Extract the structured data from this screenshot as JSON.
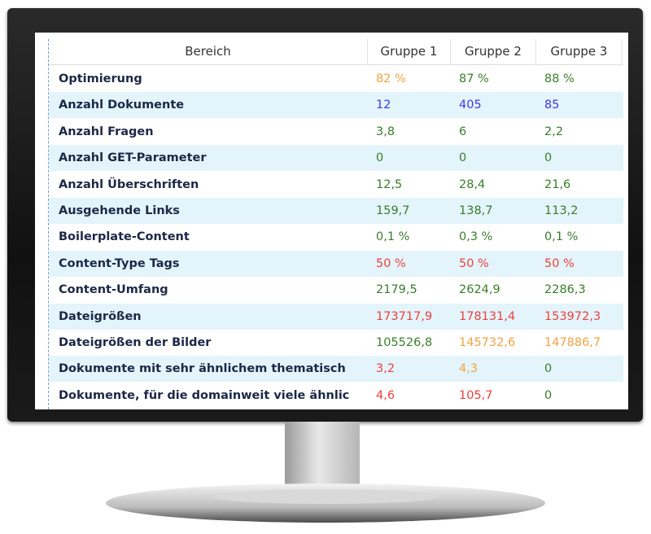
{
  "table": {
    "header": [
      "Bereich",
      "Gruppe 1",
      "Gruppe 2",
      "Gruppe 3"
    ],
    "rows": [
      {
        "label": "Optimierung",
        "cells": [
          {
            "text": "82 %",
            "color": "#f3a244"
          },
          {
            "text": "87 %",
            "color": "#3b7d2c"
          },
          {
            "text": "88 %",
            "color": "#3b7d2c"
          }
        ]
      },
      {
        "label": "Anzahl Dokumente",
        "cells": [
          {
            "text": "12",
            "color": "#3a3aee"
          },
          {
            "text": "405",
            "color": "#3a3aee"
          },
          {
            "text": "85",
            "color": "#3a3aee"
          }
        ]
      },
      {
        "label": "Anzahl Fragen",
        "cells": [
          {
            "text": "3,8",
            "color": "#3b7d2c"
          },
          {
            "text": "6",
            "color": "#3b7d2c"
          },
          {
            "text": "2,2",
            "color": "#3b7d2c"
          }
        ]
      },
      {
        "label": "Anzahl GET-Parameter",
        "cells": [
          {
            "text": "0",
            "color": "#3b7d2c"
          },
          {
            "text": "0",
            "color": "#3b7d2c"
          },
          {
            "text": "0",
            "color": "#3b7d2c"
          }
        ]
      },
      {
        "label": "Anzahl Überschriften",
        "cells": [
          {
            "text": "12,5",
            "color": "#3b7d2c"
          },
          {
            "text": "28,4",
            "color": "#3b7d2c"
          },
          {
            "text": "21,6",
            "color": "#3b7d2c"
          }
        ]
      },
      {
        "label": "Ausgehende Links",
        "cells": [
          {
            "text": "159,7",
            "color": "#3b7d2c"
          },
          {
            "text": "138,7",
            "color": "#3b7d2c"
          },
          {
            "text": "113,2",
            "color": "#3b7d2c"
          }
        ]
      },
      {
        "label": "Boilerplate-Content",
        "cells": [
          {
            "text": "0,1 %",
            "color": "#3b7d2c"
          },
          {
            "text": "0,3 %",
            "color": "#3b7d2c"
          },
          {
            "text": "0,1 %",
            "color": "#3b7d2c"
          }
        ]
      },
      {
        "label": "Content-Type Tags",
        "cells": [
          {
            "text": "50 %",
            "color": "#ef4040"
          },
          {
            "text": "50 %",
            "color": "#ef4040"
          },
          {
            "text": "50 %",
            "color": "#ef4040"
          }
        ]
      },
      {
        "label": "Content-Umfang",
        "cells": [
          {
            "text": "2179,5",
            "color": "#3b7d2c"
          },
          {
            "text": "2624,9",
            "color": "#3b7d2c"
          },
          {
            "text": "2286,3",
            "color": "#3b7d2c"
          }
        ]
      },
      {
        "label": "Dateigrößen",
        "cells": [
          {
            "text": "173717,9",
            "color": "#ef4040"
          },
          {
            "text": "178131,4",
            "color": "#ef4040"
          },
          {
            "text": "153972,3",
            "color": "#ef4040"
          }
        ]
      },
      {
        "label": "Dateigrößen der Bilder",
        "cells": [
          {
            "text": "105526,8",
            "color": "#3b7d2c"
          },
          {
            "text": "145732,6",
            "color": "#f3a244"
          },
          {
            "text": "147886,7",
            "color": "#f3a244"
          }
        ]
      },
      {
        "label": "Dokumente mit sehr ähnlichem thematisch",
        "cells": [
          {
            "text": "3,2",
            "color": "#ef4040"
          },
          {
            "text": "4,3",
            "color": "#f3a244"
          },
          {
            "text": "0",
            "color": "#3b7d2c"
          }
        ]
      },
      {
        "label": "Dokumente, für die domainweit viele ähnlic",
        "cells": [
          {
            "text": "4,6",
            "color": "#ef4040"
          },
          {
            "text": "105,7",
            "color": "#ef4040"
          },
          {
            "text": "0",
            "color": "#3b7d2c"
          }
        ]
      }
    ]
  }
}
